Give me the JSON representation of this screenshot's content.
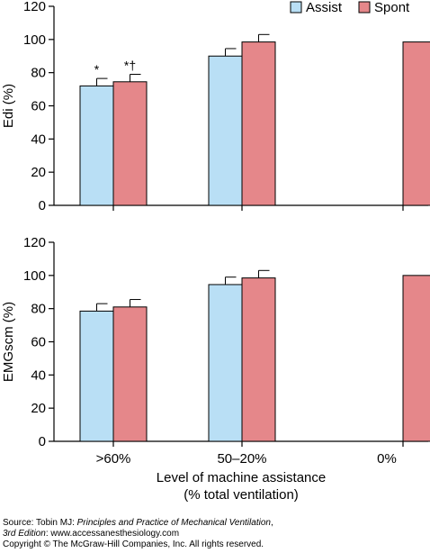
{
  "chart_data": {
    "type": "bar",
    "categories": [
      ">60%",
      "50–20%",
      "0%"
    ],
    "xlabel_line1": "Level of machine assistance",
    "xlabel_line2": "(% total ventilation)",
    "legend": [
      {
        "name": "Assist",
        "color": "#b9dff5"
      },
      {
        "name": "Spont",
        "color": "#e5878a"
      }
    ],
    "panels": [
      {
        "ylabel": "Edi (%)",
        "ylim": [
          0,
          120
        ],
        "yticks": [
          "0",
          "20",
          "40",
          "60",
          "80",
          "100",
          "120"
        ],
        "series": [
          {
            "name": "Assist",
            "values": [
              72,
              90,
              null
            ],
            "errors": [
              4.5,
              4.5,
              null
            ],
            "annotations": [
              "*",
              "",
              ""
            ]
          },
          {
            "name": "Spont",
            "values": [
              74.5,
              98.5,
              98.5
            ],
            "errors": [
              4.5,
              4.5,
              null
            ],
            "annotations": [
              "*†",
              "",
              ""
            ]
          }
        ]
      },
      {
        "ylabel": "EMGscm (%)",
        "ylim": [
          0,
          120
        ],
        "yticks": [
          "0",
          "20",
          "40",
          "60",
          "80",
          "100",
          "120"
        ],
        "series": [
          {
            "name": "Assist",
            "values": [
              78.5,
              94.5,
              null
            ],
            "errors": [
              4.5,
              4.5,
              null
            ],
            "annotations": [
              "",
              "",
              ""
            ]
          },
          {
            "name": "Spont",
            "values": [
              81,
              98.5,
              100
            ],
            "errors": [
              4.5,
              4.5,
              null
            ],
            "annotations": [
              "",
              "",
              ""
            ]
          }
        ]
      }
    ]
  },
  "source": {
    "line1_prefix": "Source: Tobin MJ: ",
    "line1_title": "Principles and Practice of Mechanical Ventilation",
    "line1_suffix": ",",
    "line2_edition": "3rd Edition",
    "line2_rest": ": www.accessanesthesiology.com",
    "line3": "Copyright © The McGraw-Hill Companies, Inc. All rights reserved."
  }
}
